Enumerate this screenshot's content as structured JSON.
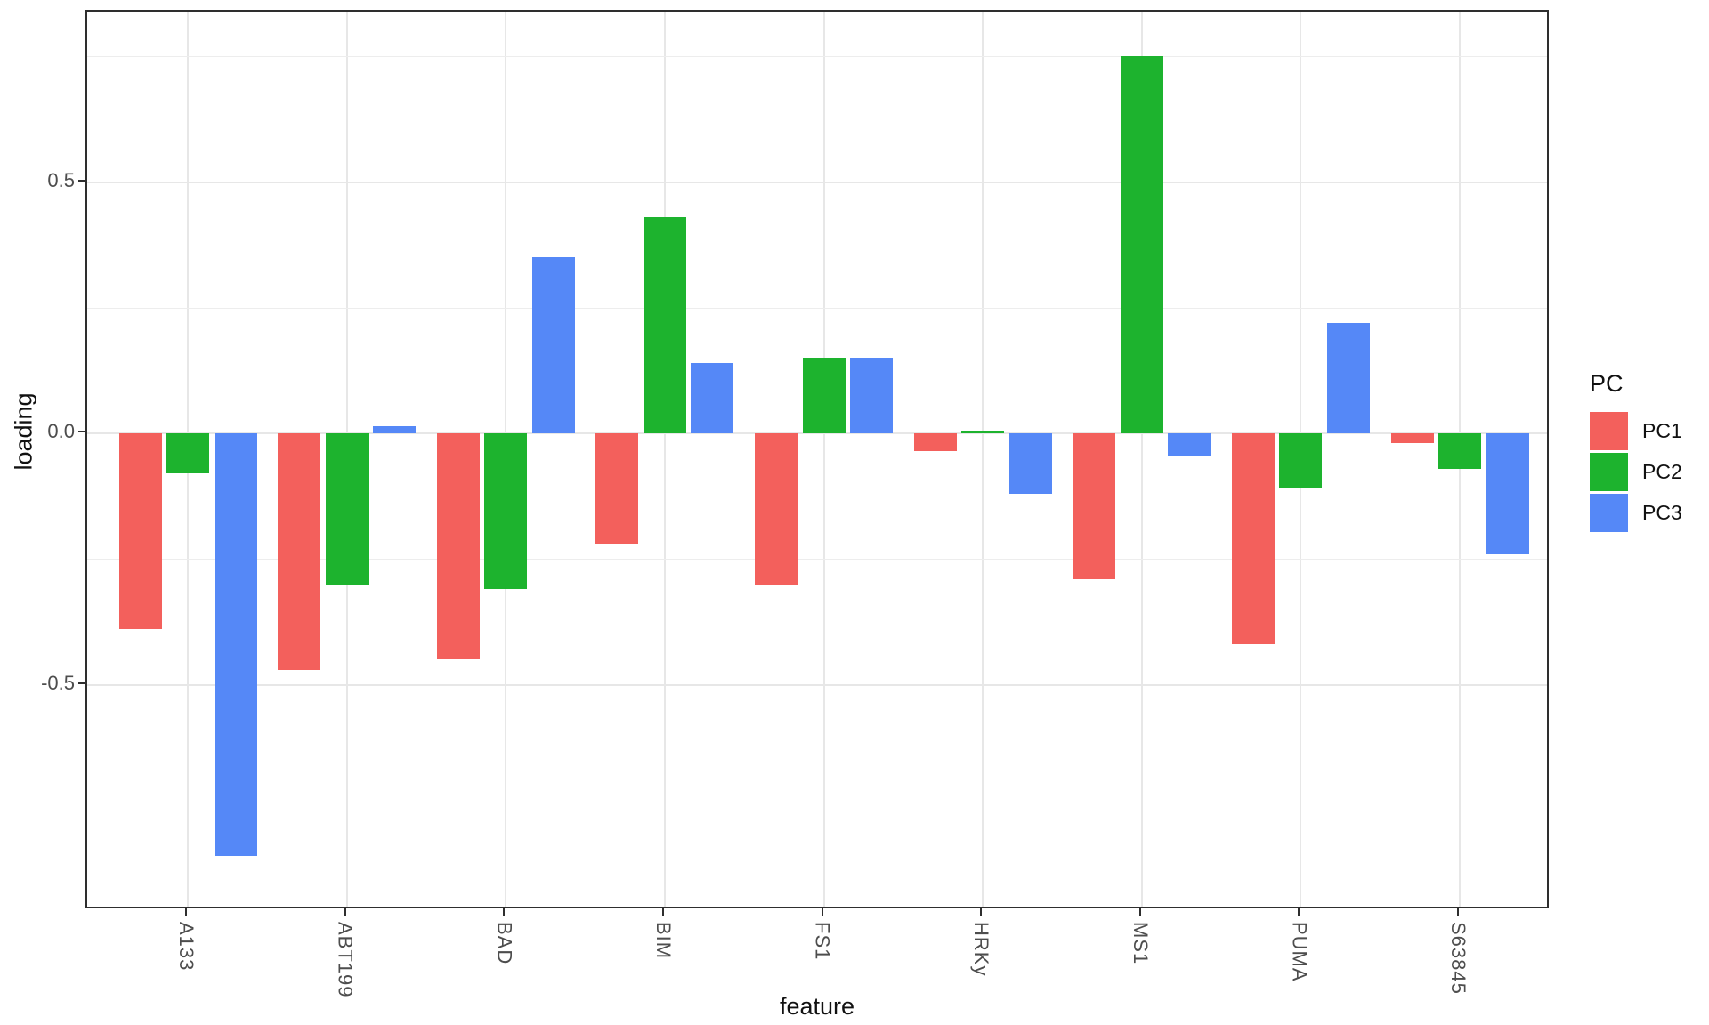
{
  "chart_data": {
    "type": "bar",
    "title": "",
    "xlabel": "feature",
    "ylabel": "loading",
    "categories": [
      "A133",
      "ABT199",
      "BAD",
      "BIM",
      "FS1",
      "HRKy",
      "MS1",
      "PUMA",
      "S63845"
    ],
    "series": [
      {
        "name": "PC1",
        "color": "#f3605c",
        "values": [
          -0.39,
          -0.47,
          -0.45,
          -0.22,
          -0.3,
          -0.035,
          -0.29,
          -0.42,
          -0.02
        ]
      },
      {
        "name": "PC2",
        "color": "#1db32e",
        "values": [
          -0.08,
          -0.3,
          -0.31,
          0.43,
          0.15,
          0.005,
          0.75,
          -0.11,
          -0.07
        ]
      },
      {
        "name": "PC3",
        "color": "#5588f7",
        "values": [
          -0.84,
          0.015,
          0.35,
          0.14,
          0.15,
          -0.12,
          -0.045,
          0.22,
          -0.24
        ]
      }
    ],
    "ylim": [
      -0.947,
      0.839
    ],
    "yticks": [
      0.5,
      0.0,
      -0.5
    ],
    "ytick_labels": [
      "0.5",
      "0.0",
      "-0.5"
    ],
    "minor_gridlines": [
      0.75,
      0.25,
      -0.25,
      -0.75
    ],
    "grid": true,
    "legend_title": "PC",
    "legend_position": "right",
    "colors": {
      "panel_border": "#2e2e2e",
      "gridline": "#e7e7e7",
      "tick_text": "#4d4d4d",
      "title_text": "#111111",
      "background": "#ffffff"
    }
  }
}
